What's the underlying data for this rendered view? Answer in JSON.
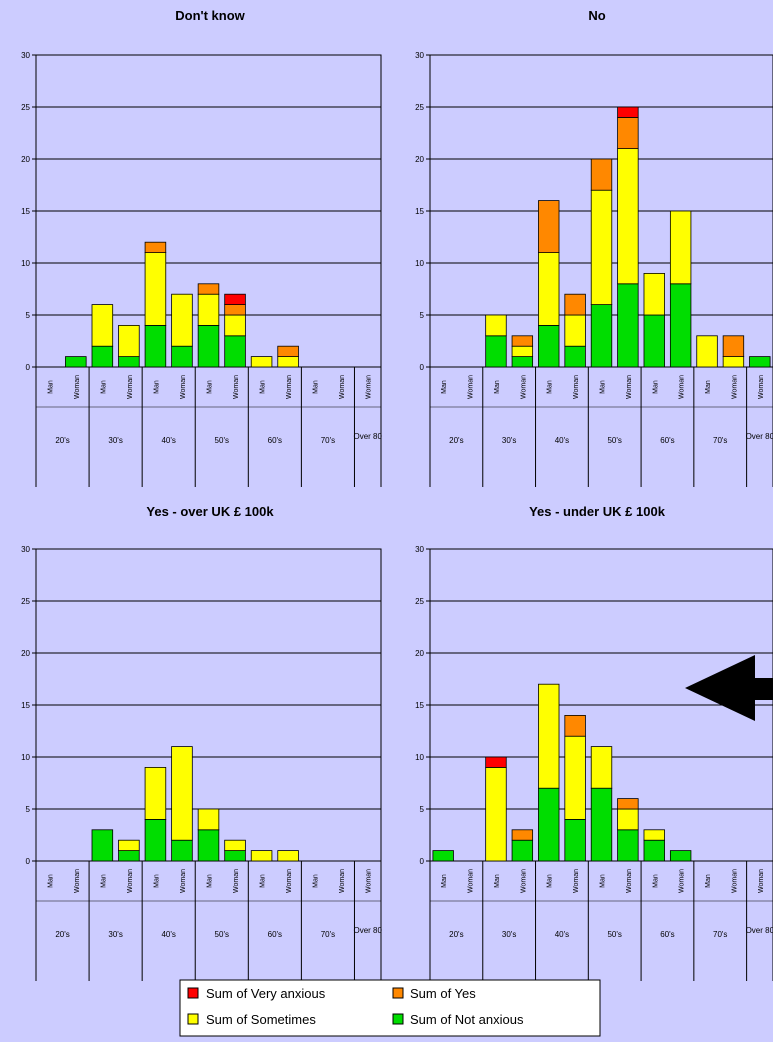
{
  "chart_data": [
    {
      "type": "bar",
      "stacked": true,
      "title": "Don't know",
      "ylim": [
        0,
        30
      ],
      "yticks": [
        0,
        5,
        10,
        15,
        20,
        25,
        30
      ],
      "categories": [
        "Man",
        "Woman",
        "Man",
        "Woman",
        "Man",
        "Woman",
        "Man",
        "Woman",
        "Man",
        "Woman",
        "Man",
        "Woman",
        "Woman"
      ],
      "groups": [
        "20's",
        "30's",
        "40's",
        "50's",
        "60's",
        "70's",
        "Over 80"
      ],
      "series": [
        {
          "name": "Sum of Not anxious",
          "values": [
            0,
            1,
            2,
            1,
            4,
            2,
            4,
            3,
            0,
            0,
            0,
            0,
            0
          ]
        },
        {
          "name": "Sum of Sometimes",
          "values": [
            0,
            0,
            4,
            3,
            7,
            5,
            3,
            2,
            1,
            1,
            0,
            0,
            0
          ]
        },
        {
          "name": "Sum of Yes",
          "values": [
            0,
            0,
            0,
            0,
            1,
            0,
            1,
            1,
            0,
            1,
            0,
            0,
            0
          ]
        },
        {
          "name": "Sum of Very anxious",
          "values": [
            0,
            0,
            0,
            0,
            0,
            0,
            0,
            1,
            0,
            0,
            0,
            0,
            0
          ]
        }
      ]
    },
    {
      "type": "bar",
      "stacked": true,
      "title": "No",
      "ylim": [
        0,
        30
      ],
      "yticks": [
        0,
        5,
        10,
        15,
        20,
        25,
        30
      ],
      "categories": [
        "Man",
        "Woman",
        "Man",
        "Woman",
        "Man",
        "Woman",
        "Man",
        "Woman",
        "Man",
        "Woman",
        "Man",
        "Woman",
        "Woman"
      ],
      "groups": [
        "20's",
        "30's",
        "40's",
        "50's",
        "60's",
        "70's",
        "Over 80"
      ],
      "series": [
        {
          "name": "Sum of Not anxious",
          "values": [
            0,
            0,
            3,
            1,
            4,
            2,
            6,
            8,
            5,
            8,
            0,
            0,
            1
          ]
        },
        {
          "name": "Sum of Sometimes",
          "values": [
            0,
            0,
            2,
            1,
            7,
            3,
            11,
            13,
            4,
            7,
            3,
            1,
            0
          ]
        },
        {
          "name": "Sum of Yes",
          "values": [
            0,
            0,
            0,
            1,
            5,
            2,
            3,
            3,
            0,
            0,
            0,
            2,
            0
          ]
        },
        {
          "name": "Sum of Very anxious",
          "values": [
            0,
            0,
            0,
            0,
            0,
            0,
            0,
            1,
            0,
            0,
            0,
            0,
            0
          ]
        }
      ]
    },
    {
      "type": "bar",
      "stacked": true,
      "title": "Yes - over UK £ 100k",
      "ylim": [
        0,
        30
      ],
      "yticks": [
        0,
        5,
        10,
        15,
        20,
        25,
        30
      ],
      "categories": [
        "Man",
        "Woman",
        "Man",
        "Woman",
        "Man",
        "Woman",
        "Man",
        "Woman",
        "Man",
        "Woman",
        "Man",
        "Woman",
        "Woman"
      ],
      "groups": [
        "20's",
        "30's",
        "40's",
        "50's",
        "60's",
        "70's",
        "Over 80"
      ],
      "series": [
        {
          "name": "Sum of Not anxious",
          "values": [
            0,
            0,
            3,
            1,
            4,
            2,
            3,
            1,
            0,
            0,
            0,
            0,
            0
          ]
        },
        {
          "name": "Sum of Sometimes",
          "values": [
            0,
            0,
            0,
            1,
            5,
            9,
            2,
            1,
            1,
            1,
            0,
            0,
            0
          ]
        },
        {
          "name": "Sum of Yes",
          "values": [
            0,
            0,
            0,
            0,
            0,
            0,
            0,
            0,
            0,
            0,
            0,
            0,
            0
          ]
        },
        {
          "name": "Sum of Very anxious",
          "values": [
            0,
            0,
            0,
            0,
            0,
            0,
            0,
            0,
            0,
            0,
            0,
            0,
            0
          ]
        }
      ]
    },
    {
      "type": "bar",
      "stacked": true,
      "title": "Yes - under UK £ 100k",
      "ylim": [
        0,
        30
      ],
      "yticks": [
        0,
        5,
        10,
        15,
        20,
        25,
        30
      ],
      "categories": [
        "Man",
        "Woman",
        "Man",
        "Woman",
        "Man",
        "Woman",
        "Man",
        "Woman",
        "Man",
        "Woman",
        "Man",
        "Woman",
        "Woman"
      ],
      "groups": [
        "20's",
        "30's",
        "40's",
        "50's",
        "60's",
        "70's",
        "Over 80"
      ],
      "series": [
        {
          "name": "Sum of Not anxious",
          "values": [
            1,
            0,
            0,
            2,
            7,
            4,
            7,
            3,
            2,
            1,
            0,
            0,
            0
          ]
        },
        {
          "name": "Sum of Sometimes",
          "values": [
            0,
            0,
            9,
            0,
            10,
            8,
            4,
            2,
            1,
            0,
            0,
            0,
            0
          ]
        },
        {
          "name": "Sum of Yes",
          "values": [
            0,
            0,
            0,
            1,
            0,
            2,
            0,
            1,
            0,
            0,
            0,
            0,
            0
          ]
        },
        {
          "name": "Sum of Very anxious",
          "values": [
            0,
            0,
            1,
            0,
            0,
            0,
            0,
            0,
            0,
            0,
            0,
            0,
            0
          ]
        }
      ]
    }
  ],
  "legend": {
    "items": [
      {
        "label": "Sum of Very anxious",
        "color": "#ff0000"
      },
      {
        "label": "Sum of Yes",
        "color": "#ff8800"
      },
      {
        "label": "Sum of Sometimes",
        "color": "#ffff00"
      },
      {
        "label": "Sum of Not anxious",
        "color": "#00dd00"
      }
    ]
  },
  "colors": {
    "Sum of Not anxious": "#00dd00",
    "Sum of Sometimes": "#ffff00",
    "Sum of Yes": "#ff8800",
    "Sum of Very anxious": "#ff0000"
  },
  "annotation": {
    "icon": "left-arrow-icon"
  }
}
